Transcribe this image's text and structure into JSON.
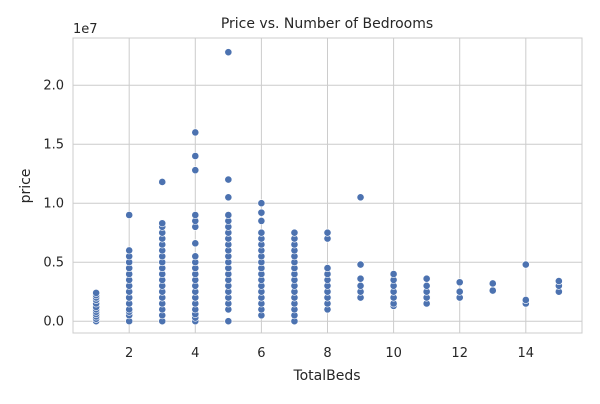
{
  "chart_data": {
    "type": "scatter",
    "title": "Price vs. Number of Bedrooms",
    "xlabel": "TotalBeds",
    "ylabel": "price",
    "y_offset_label": "1e7",
    "xlim": [
      0.3,
      15.7
    ],
    "ylim": [
      -0.1,
      2.4
    ],
    "x_ticks": [
      2,
      4,
      6,
      8,
      10,
      12,
      14
    ],
    "y_ticks": [
      0.0,
      0.5,
      1.0,
      1.5,
      2.0
    ],
    "y_tick_labels": [
      "0.0",
      "0.5",
      "1.0",
      "1.5",
      "2.0"
    ],
    "grid": true,
    "marker_color": "#4c72b0",
    "series": [
      {
        "points": [
          {
            "bed": 1,
            "prices": [
              0.0,
              0.02,
              0.04,
              0.06,
              0.08,
              0.1,
              0.12,
              0.15,
              0.18,
              0.2,
              0.22,
              0.24
            ]
          },
          {
            "bed": 2,
            "prices": [
              0.0,
              0.05,
              0.08,
              0.1,
              0.15,
              0.2,
              0.25,
              0.3,
              0.35,
              0.4,
              0.45,
              0.5,
              0.55,
              0.6,
              0.9
            ]
          },
          {
            "bed": 3,
            "prices": [
              0.0,
              0.05,
              0.1,
              0.15,
              0.2,
              0.25,
              0.3,
              0.35,
              0.4,
              0.45,
              0.5,
              0.55,
              0.6,
              0.65,
              0.7,
              0.75,
              0.8,
              0.83,
              1.18
            ]
          },
          {
            "bed": 4,
            "prices": [
              0.0,
              0.03,
              0.06,
              0.1,
              0.15,
              0.2,
              0.25,
              0.3,
              0.35,
              0.4,
              0.45,
              0.5,
              0.55,
              0.66,
              0.8,
              0.85,
              0.9,
              1.28,
              1.4,
              1.6
            ]
          },
          {
            "bed": 5,
            "prices": [
              0.0,
              0.1,
              0.15,
              0.2,
              0.25,
              0.3,
              0.35,
              0.4,
              0.45,
              0.5,
              0.55,
              0.6,
              0.65,
              0.7,
              0.75,
              0.8,
              0.85,
              0.9,
              1.05,
              1.2,
              2.28
            ]
          },
          {
            "bed": 6,
            "prices": [
              0.05,
              0.1,
              0.15,
              0.2,
              0.25,
              0.3,
              0.35,
              0.4,
              0.45,
              0.5,
              0.55,
              0.6,
              0.65,
              0.7,
              0.75,
              0.85,
              0.92,
              1.0
            ]
          },
          {
            "bed": 7,
            "prices": [
              0.0,
              0.05,
              0.1,
              0.15,
              0.2,
              0.25,
              0.3,
              0.35,
              0.4,
              0.45,
              0.5,
              0.55,
              0.6,
              0.65,
              0.7,
              0.75
            ]
          },
          {
            "bed": 8,
            "prices": [
              0.1,
              0.15,
              0.2,
              0.25,
              0.3,
              0.35,
              0.4,
              0.45,
              0.7,
              0.75
            ]
          },
          {
            "bed": 9,
            "prices": [
              0.2,
              0.25,
              0.3,
              0.36,
              0.48,
              1.05
            ]
          },
          {
            "bed": 10,
            "prices": [
              0.13,
              0.15,
              0.2,
              0.25,
              0.3,
              0.35,
              0.4
            ]
          },
          {
            "bed": 11,
            "prices": [
              0.15,
              0.2,
              0.25,
              0.3,
              0.36
            ]
          },
          {
            "bed": 12,
            "prices": [
              0.2,
              0.25,
              0.33
            ]
          },
          {
            "bed": 13,
            "prices": [
              0.26,
              0.32
            ]
          },
          {
            "bed": 14,
            "prices": [
              0.15,
              0.18,
              0.48
            ]
          },
          {
            "bed": 15,
            "prices": [
              0.25,
              0.3,
              0.34
            ]
          }
        ]
      }
    ]
  }
}
